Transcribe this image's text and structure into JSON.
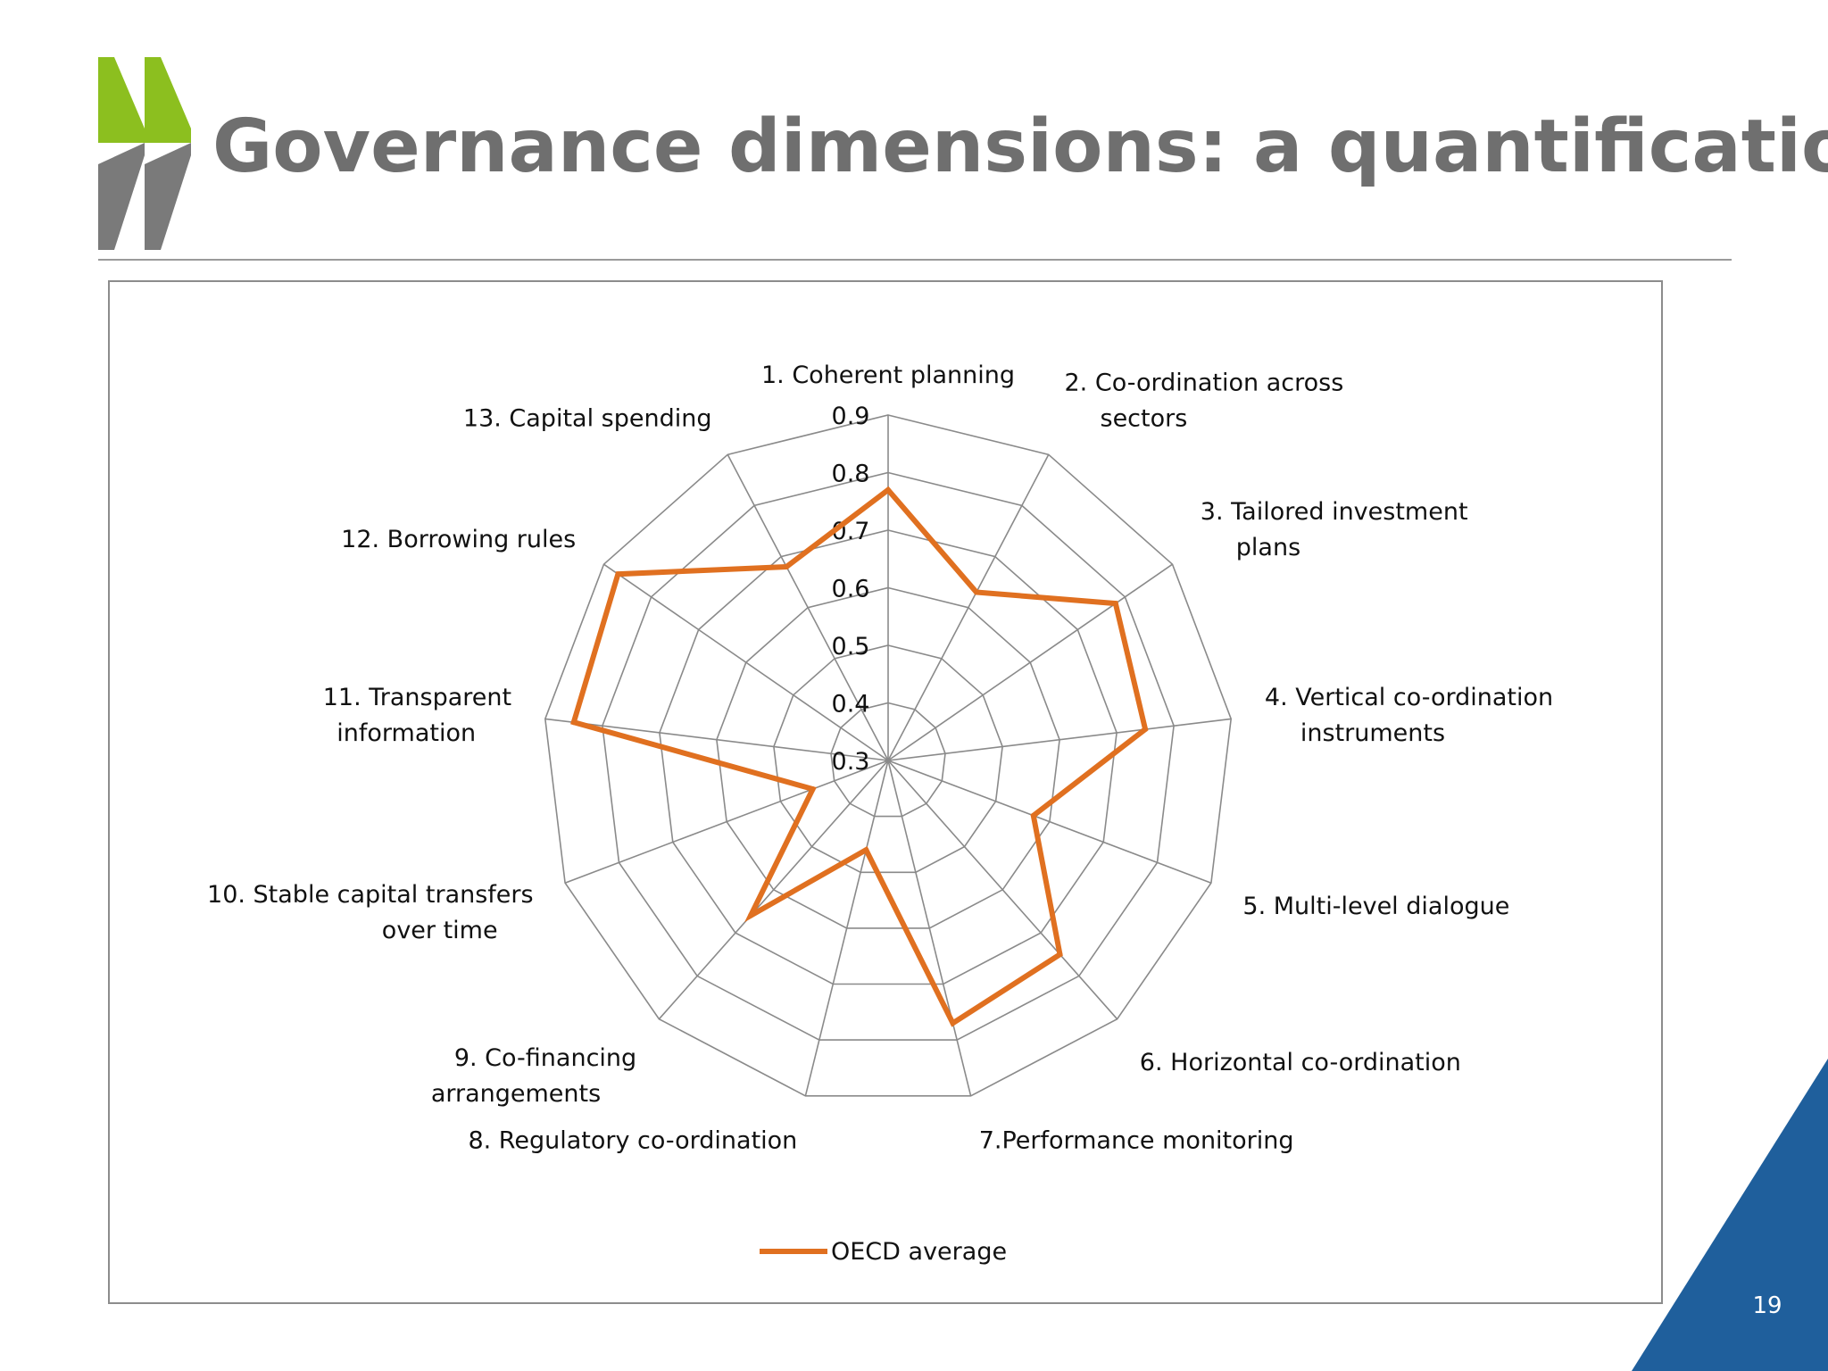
{
  "slide": {
    "title": "Governance dimensions: a quantification",
    "page_number": "19",
    "colors": {
      "title": "#6f6f6f",
      "logo_green": "#8cbf1f",
      "logo_gray": "#7a7a7a",
      "corner_blue": "#1f5f9c",
      "series": "#e07020",
      "grid": "#8a8a8a"
    }
  },
  "chart_data": {
    "type": "radar",
    "title": "",
    "categories": [
      [
        "1. Coherent planning"
      ],
      [
        "2. Co-ordination across",
        "sectors"
      ],
      [
        "3. Tailored investment",
        "plans"
      ],
      [
        "4. Vertical co-ordination",
        "instruments"
      ],
      [
        "5. Multi-level dialogue"
      ],
      [
        "6. Horizontal co-ordination"
      ],
      [
        "7.Performance monitoring"
      ],
      [
        "8. Regulatory co-ordination"
      ],
      [
        "9. Co-financing",
        "arrangements"
      ],
      [
        "10. Stable capital transfers",
        "over time"
      ],
      [
        "11. Transparent",
        "information"
      ],
      [
        "12. Borrowing rules"
      ],
      [
        "13. Capital spending"
      ]
    ],
    "ticks": [
      "0.3",
      "0.4",
      "0.5",
      "0.6",
      "0.7",
      "0.8",
      "0.9"
    ],
    "rmin": 0.3,
    "rmax": 0.9,
    "series": [
      {
        "name": "OECD average",
        "values": [
          0.77,
          0.63,
          0.78,
          0.75,
          0.57,
          0.75,
          0.77,
          0.46,
          0.66,
          0.44,
          0.85,
          0.87,
          0.68
        ]
      }
    ],
    "legend_position": "bottom"
  }
}
